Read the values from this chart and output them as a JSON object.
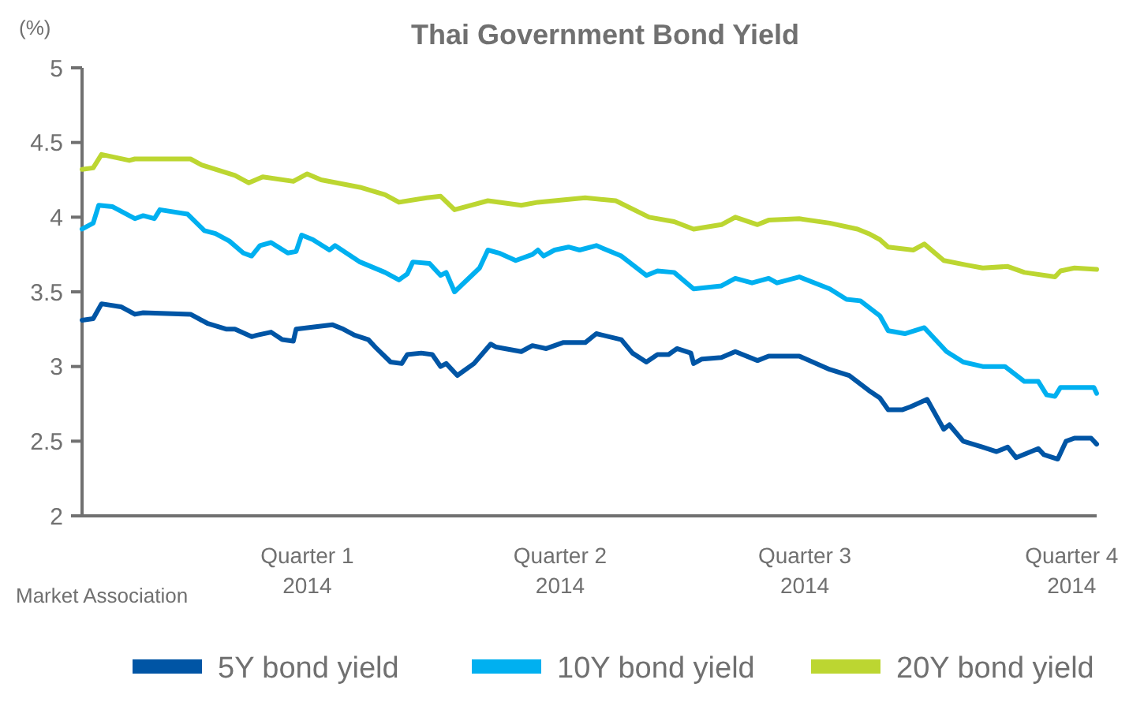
{
  "chart_data": {
    "type": "line",
    "title": "Thai Government Bond Yield",
    "ylabel": "(%)",
    "annotations": [
      "Market Association"
    ],
    "xlim": [
      "2014-01-09",
      "2015-01-09"
    ],
    "xticks": [
      {
        "value": "2014-03-31",
        "label": "Quarter 1\n2014"
      },
      {
        "value": "2014-06-30",
        "label": "Quarter 2\n2014"
      },
      {
        "value": "2014-09-26",
        "label": "Quarter 3\n2014"
      },
      {
        "value": "2014-12-31",
        "label": "Quarter 4\n2014"
      }
    ],
    "ylim": [
      2,
      5
    ],
    "yticks": [
      2,
      2.5,
      3,
      3.5,
      4,
      4.5,
      5
    ],
    "legend": "bottom",
    "line_style": "solid",
    "series": [
      {
        "name": "5Y bond yield",
        "color": "#0055a5",
        "x": [
          "2014-01-09",
          "2014-01-13",
          "2014-01-16",
          "2014-01-23",
          "2014-01-28",
          "2014-01-31",
          "2014-02-17",
          "2014-02-23",
          "2014-03-02",
          "2014-03-05",
          "2014-03-11",
          "2014-03-13",
          "2014-03-18",
          "2014-03-22",
          "2014-03-26",
          "2014-03-27",
          "2014-04-09",
          "2014-04-13",
          "2014-04-17",
          "2014-04-22",
          "2014-04-25",
          "2014-04-30",
          "2014-05-04",
          "2014-05-06",
          "2014-05-11",
          "2014-05-15",
          "2014-05-18",
          "2014-05-20",
          "2014-05-24",
          "2014-05-30",
          "2014-06-05",
          "2014-06-07",
          "2014-06-16",
          "2014-06-20",
          "2014-06-25",
          "2014-07-01",
          "2014-07-09",
          "2014-07-13",
          "2014-07-22",
          "2014-07-26",
          "2014-07-31",
          "2014-08-04",
          "2014-08-08",
          "2014-08-11",
          "2014-08-16",
          "2014-08-17",
          "2014-08-20",
          "2014-08-27",
          "2014-09-01",
          "2014-09-09",
          "2014-09-13",
          "2014-09-24",
          "2014-10-05",
          "2014-10-12",
          "2014-10-19",
          "2014-10-23",
          "2014-10-26",
          "2014-10-31",
          "2014-11-03",
          "2014-11-09",
          "2014-11-15",
          "2014-11-17",
          "2014-11-22",
          "2014-11-29",
          "2014-12-04",
          "2014-12-08",
          "2014-12-11",
          "2014-12-19",
          "2014-12-21",
          "2014-12-26",
          "2014-12-29",
          "2015-01-01",
          "2015-01-07",
          "2015-01-09"
        ],
        "values": [
          3.31,
          3.32,
          3.42,
          3.4,
          3.35,
          3.36,
          3.35,
          3.29,
          3.25,
          3.25,
          3.2,
          3.21,
          3.23,
          3.18,
          3.17,
          3.25,
          3.28,
          3.25,
          3.21,
          3.18,
          3.12,
          3.03,
          3.02,
          3.08,
          3.09,
          3.08,
          3.0,
          3.02,
          2.94,
          3.02,
          3.15,
          3.13,
          3.1,
          3.14,
          3.12,
          3.16,
          3.16,
          3.22,
          3.18,
          3.09,
          3.03,
          3.08,
          3.08,
          3.12,
          3.09,
          3.02,
          3.05,
          3.06,
          3.1,
          3.04,
          3.07,
          3.07,
          2.98,
          2.94,
          2.84,
          2.79,
          2.71,
          2.71,
          2.73,
          2.78,
          2.58,
          2.61,
          2.5,
          2.46,
          2.43,
          2.46,
          2.39,
          2.45,
          2.41,
          2.38,
          2.5,
          2.52,
          2.52,
          2.48
        ]
      },
      {
        "name": "10Y bond yield",
        "color": "#00b0f0",
        "x": [
          "2014-01-09",
          "2014-01-13",
          "2014-01-15",
          "2014-01-20",
          "2014-01-28",
          "2014-01-31",
          "2014-02-04",
          "2014-02-06",
          "2014-02-16",
          "2014-02-22",
          "2014-02-26",
          "2014-03-03",
          "2014-03-08",
          "2014-03-11",
          "2014-03-14",
          "2014-03-18",
          "2014-03-24",
          "2014-03-27",
          "2014-03-29",
          "2014-04-02",
          "2014-04-08",
          "2014-04-10",
          "2014-04-19",
          "2014-04-28",
          "2014-05-03",
          "2014-05-06",
          "2014-05-08",
          "2014-05-14",
          "2014-05-18",
          "2014-05-20",
          "2014-05-23",
          "2014-06-01",
          "2014-06-04",
          "2014-06-08",
          "2014-06-14",
          "2014-06-20",
          "2014-06-22",
          "2014-06-24",
          "2014-06-28",
          "2014-07-03",
          "2014-07-07",
          "2014-07-13",
          "2014-07-22",
          "2014-07-31",
          "2014-08-04",
          "2014-08-10",
          "2014-08-17",
          "2014-08-27",
          "2014-09-01",
          "2014-09-07",
          "2014-09-13",
          "2014-09-16",
          "2014-09-24",
          "2014-10-05",
          "2014-10-11",
          "2014-10-16",
          "2014-10-23",
          "2014-10-26",
          "2014-11-01",
          "2014-11-08",
          "2014-11-16",
          "2014-11-22",
          "2014-11-29",
          "2014-12-07",
          "2014-12-14",
          "2014-12-19",
          "2014-12-22",
          "2014-12-25",
          "2014-12-27",
          "2015-01-08",
          "2015-01-09"
        ],
        "values": [
          3.92,
          3.96,
          4.08,
          4.07,
          3.99,
          4.01,
          3.99,
          4.05,
          4.02,
          3.91,
          3.89,
          3.84,
          3.76,
          3.74,
          3.81,
          3.83,
          3.76,
          3.77,
          3.88,
          3.85,
          3.78,
          3.81,
          3.7,
          3.63,
          3.58,
          3.62,
          3.7,
          3.69,
          3.61,
          3.63,
          3.5,
          3.66,
          3.78,
          3.76,
          3.71,
          3.75,
          3.78,
          3.74,
          3.78,
          3.8,
          3.78,
          3.81,
          3.74,
          3.61,
          3.64,
          3.63,
          3.52,
          3.54,
          3.59,
          3.56,
          3.59,
          3.56,
          3.6,
          3.52,
          3.45,
          3.44,
          3.34,
          3.24,
          3.22,
          3.26,
          3.1,
          3.03,
          3.0,
          3.0,
          2.9,
          2.9,
          2.81,
          2.8,
          2.86,
          2.86,
          2.82
        ]
      },
      {
        "name": "20Y bond yield",
        "color": "#bcd631",
        "x": [
          "2014-01-09",
          "2014-01-13",
          "2014-01-16",
          "2014-01-26",
          "2014-01-28",
          "2014-02-17",
          "2014-02-21",
          "2014-03-05",
          "2014-03-10",
          "2014-03-15",
          "2014-03-26",
          "2014-03-31",
          "2014-04-05",
          "2014-04-19",
          "2014-04-28",
          "2014-05-03",
          "2014-05-13",
          "2014-05-18",
          "2014-05-23",
          "2014-06-04",
          "2014-06-16",
          "2014-06-22",
          "2014-07-09",
          "2014-07-20",
          "2014-08-01",
          "2014-08-10",
          "2014-08-17",
          "2014-08-27",
          "2014-09-01",
          "2014-09-09",
          "2014-09-13",
          "2014-09-24",
          "2014-10-05",
          "2014-10-15",
          "2014-10-19",
          "2014-10-23",
          "2014-10-26",
          "2014-11-04",
          "2014-11-08",
          "2014-11-15",
          "2014-11-23",
          "2014-11-29",
          "2014-12-08",
          "2014-12-14",
          "2014-12-25",
          "2014-12-27",
          "2015-01-01",
          "2015-01-09"
        ],
        "values": [
          4.32,
          4.33,
          4.42,
          4.38,
          4.39,
          4.39,
          4.35,
          4.28,
          4.23,
          4.27,
          4.24,
          4.29,
          4.25,
          4.2,
          4.15,
          4.1,
          4.13,
          4.14,
          4.05,
          4.11,
          4.08,
          4.1,
          4.13,
          4.11,
          4.0,
          3.97,
          3.92,
          3.95,
          4.0,
          3.95,
          3.98,
          3.99,
          3.96,
          3.92,
          3.89,
          3.85,
          3.8,
          3.78,
          3.82,
          3.71,
          3.68,
          3.66,
          3.67,
          3.63,
          3.6,
          3.64,
          3.66,
          3.65
        ]
      }
    ]
  }
}
